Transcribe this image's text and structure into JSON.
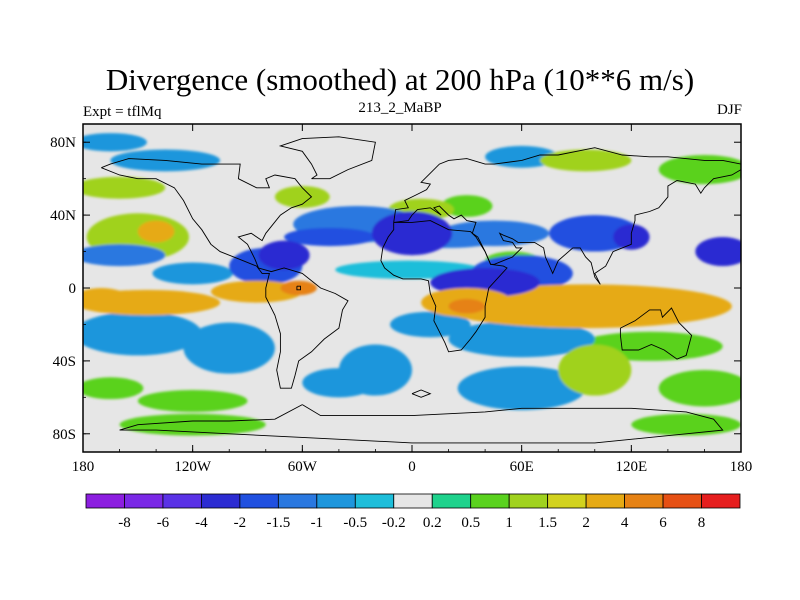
{
  "title": "Divergence (smoothed) at 200 hPa (10**6 m/s)",
  "left_label": "Expt = tflMq",
  "center_label": "213_2_MaBP",
  "right_label": "DJF",
  "chart_data": {
    "type": "heatmap",
    "xlim": [
      -180,
      180
    ],
    "ylim": [
      -90,
      90
    ],
    "x_ticks": [
      {
        "value": -180,
        "label": "180"
      },
      {
        "value": -120,
        "label": "120W"
      },
      {
        "value": -60,
        "label": "60W"
      },
      {
        "value": 0,
        "label": "0"
      },
      {
        "value": 60,
        "label": "60E"
      },
      {
        "value": 120,
        "label": "120E"
      },
      {
        "value": 180,
        "label": "180"
      }
    ],
    "y_ticks": [
      {
        "value": 80,
        "label": "80N"
      },
      {
        "value": 40,
        "label": "40N"
      },
      {
        "value": 0,
        "label": "0"
      },
      {
        "value": -40,
        "label": "40S"
      },
      {
        "value": -80,
        "label": "80S"
      }
    ],
    "colorbar": {
      "colors": [
        "#8c1ee0",
        "#7a28e6",
        "#5a32e6",
        "#2c2cd2",
        "#2050e0",
        "#2a78e0",
        "#1e96dc",
        "#1ebeda",
        "#e6e6e6",
        "#1ed28c",
        "#5ad21e",
        "#a0d21e",
        "#d2d21e",
        "#e6aa14",
        "#e68214",
        "#e65014",
        "#e61e1e"
      ],
      "labels": [
        "-8",
        "-6",
        "-4",
        "-2",
        "-1.5",
        "-1",
        "-0.5",
        "-0.2",
        "0.2",
        "0.5",
        "1",
        "1.5",
        "2",
        "4",
        "6",
        "8"
      ]
    },
    "blobs": [
      {
        "lon": -150,
        "lat": 28,
        "rx": 28,
        "ry": 13,
        "value": 1.2
      },
      {
        "lon": -140,
        "lat": 31,
        "rx": 10,
        "ry": 6,
        "value": 3.0
      },
      {
        "lon": -160,
        "lat": 18,
        "rx": 25,
        "ry": 6,
        "value": -1.2
      },
      {
        "lon": -120,
        "lat": 8,
        "rx": 22,
        "ry": 6,
        "value": -0.9
      },
      {
        "lon": -80,
        "lat": 12,
        "rx": 20,
        "ry": 10,
        "value": -1.6
      },
      {
        "lon": -70,
        "lat": 18,
        "rx": 14,
        "ry": 8,
        "value": -2.6
      },
      {
        "lon": -145,
        "lat": -8,
        "rx": 40,
        "ry": 7,
        "value": 2.2
      },
      {
        "lon": -170,
        "lat": -6,
        "rx": 15,
        "ry": 6,
        "value": 3.2
      },
      {
        "lon": -85,
        "lat": -2,
        "rx": 25,
        "ry": 6,
        "value": 2.0
      },
      {
        "lon": -62,
        "lat": 0,
        "rx": 10,
        "ry": 4,
        "value": 4.5
      },
      {
        "lon": -150,
        "lat": -25,
        "rx": 35,
        "ry": 12,
        "value": -0.8
      },
      {
        "lon": -100,
        "lat": -33,
        "rx": 25,
        "ry": 14,
        "value": -1.0
      },
      {
        "lon": -165,
        "lat": -55,
        "rx": 18,
        "ry": 6,
        "value": 0.9
      },
      {
        "lon": -120,
        "lat": -62,
        "rx": 30,
        "ry": 6,
        "value": 0.7
      },
      {
        "lon": -30,
        "lat": 35,
        "rx": 35,
        "ry": 10,
        "value": -1.3
      },
      {
        "lon": 0,
        "lat": 30,
        "rx": 22,
        "ry": 12,
        "value": -2.6
      },
      {
        "lon": -45,
        "lat": 28,
        "rx": 25,
        "ry": 5,
        "value": -1.7
      },
      {
        "lon": 20,
        "lat": 28,
        "rx": 30,
        "ry": 6,
        "value": -1.2
      },
      {
        "lon": 45,
        "lat": 30,
        "rx": 30,
        "ry": 7,
        "value": -1.2
      },
      {
        "lon": 100,
        "lat": 30,
        "rx": 25,
        "ry": 10,
        "value": -1.6
      },
      {
        "lon": 120,
        "lat": 28,
        "rx": 10,
        "ry": 7,
        "value": -2.8
      },
      {
        "lon": 170,
        "lat": 20,
        "rx": 15,
        "ry": 8,
        "value": -2.4
      },
      {
        "lon": 40,
        "lat": 3,
        "rx": 30,
        "ry": 8,
        "value": -2.6
      },
      {
        "lon": 60,
        "lat": 8,
        "rx": 28,
        "ry": 10,
        "value": -1.6
      },
      {
        "lon": 95,
        "lat": -10,
        "rx": 80,
        "ry": 12,
        "value": 2.5
      },
      {
        "lon": 30,
        "lat": -8,
        "rx": 25,
        "ry": 8,
        "value": 3.0
      },
      {
        "lon": 30,
        "lat": -10,
        "rx": 10,
        "ry": 4,
        "value": 5.0
      },
      {
        "lon": 10,
        "lat": -20,
        "rx": 22,
        "ry": 7,
        "value": -1.0
      },
      {
        "lon": 60,
        "lat": -28,
        "rx": 40,
        "ry": 10,
        "value": -1.0
      },
      {
        "lon": 130,
        "lat": -32,
        "rx": 40,
        "ry": 8,
        "value": 0.8
      },
      {
        "lon": 60,
        "lat": -55,
        "rx": 35,
        "ry": 12,
        "value": -0.8
      },
      {
        "lon": 100,
        "lat": -45,
        "rx": 20,
        "ry": 14,
        "value": 1.0
      },
      {
        "lon": -20,
        "lat": -45,
        "rx": 20,
        "ry": 14,
        "value": -0.8
      },
      {
        "lon": -40,
        "lat": -52,
        "rx": 20,
        "ry": 8,
        "value": -1.0
      },
      {
        "lon": -160,
        "lat": 55,
        "rx": 25,
        "ry": 6,
        "value": 1.0
      },
      {
        "lon": -60,
        "lat": 50,
        "rx": 15,
        "ry": 6,
        "value": 1.0
      },
      {
        "lon": -135,
        "lat": 70,
        "rx": 30,
        "ry": 6,
        "value": -0.8
      },
      {
        "lon": -165,
        "lat": 80,
        "rx": 20,
        "ry": 5,
        "value": -0.8
      },
      {
        "lon": 60,
        "lat": 72,
        "rx": 20,
        "ry": 6,
        "value": -0.8
      },
      {
        "lon": 95,
        "lat": 70,
        "rx": 25,
        "ry": 6,
        "value": 1.0
      },
      {
        "lon": 160,
        "lat": 65,
        "rx": 25,
        "ry": 8,
        "value": 0.9
      },
      {
        "lon": 5,
        "lat": 43,
        "rx": 18,
        "ry": 6,
        "value": 1.0
      },
      {
        "lon": 30,
        "lat": 45,
        "rx": 14,
        "ry": 6,
        "value": 0.9
      },
      {
        "lon": 55,
        "lat": 15,
        "rx": 15,
        "ry": 5,
        "value": 0.6
      },
      {
        "lon": -2,
        "lat": 10,
        "rx": 40,
        "ry": 5,
        "value": -0.4
      },
      {
        "lon": -120,
        "lat": -75,
        "rx": 40,
        "ry": 6,
        "value": 0.6
      },
      {
        "lon": 150,
        "lat": -75,
        "rx": 30,
        "ry": 6,
        "value": 0.6
      },
      {
        "lon": 160,
        "lat": -55,
        "rx": 25,
        "ry": 10,
        "value": 0.9
      }
    ],
    "coastlines": [
      [
        [
          -170,
          66
        ],
        [
          -160,
          62
        ],
        [
          -150,
          60
        ],
        [
          -140,
          60
        ],
        [
          -130,
          55
        ],
        [
          -125,
          48
        ],
        [
          -120,
          38
        ],
        [
          -115,
          32
        ],
        [
          -110,
          24
        ],
        [
          -105,
          20
        ],
        [
          -95,
          16
        ],
        [
          -85,
          12
        ],
        [
          -82,
          8
        ],
        [
          -78,
          8
        ],
        [
          -80,
          0
        ],
        [
          -80,
          -5
        ],
        [
          -75,
          -15
        ],
        [
          -72,
          -25
        ],
        [
          -72,
          -35
        ],
        [
          -74,
          -45
        ],
        [
          -72,
          -55
        ],
        [
          -66,
          -55
        ],
        [
          -64,
          -48
        ],
        [
          -62,
          -40
        ],
        [
          -55,
          -35
        ],
        [
          -48,
          -28
        ],
        [
          -40,
          -22
        ],
        [
          -38,
          -12
        ],
        [
          -35,
          -7
        ],
        [
          -42,
          -3
        ],
        [
          -50,
          0
        ],
        [
          -60,
          8
        ],
        [
          -70,
          11
        ],
        [
          -77,
          9
        ],
        [
          -84,
          11
        ],
        [
          -86,
          16
        ],
        [
          -88,
          20
        ],
        [
          -90,
          24
        ],
        [
          -95,
          28
        ],
        [
          -88,
          30
        ],
        [
          -82,
          26
        ],
        [
          -80,
          30
        ],
        [
          -76,
          35
        ],
        [
          -72,
          40
        ],
        [
          -66,
          44
        ],
        [
          -60,
          46
        ],
        [
          -55,
          50
        ],
        [
          -60,
          55
        ],
        [
          -64,
          60
        ],
        [
          -75,
          62
        ],
        [
          -80,
          60
        ],
        [
          -78,
          55
        ],
        [
          -85,
          55
        ],
        [
          -95,
          60
        ],
        [
          -94,
          68
        ],
        [
          -115,
          68
        ],
        [
          -135,
          70
        ],
        [
          -155,
          71
        ],
        [
          -165,
          68
        ],
        [
          -170,
          66
        ]
      ],
      [
        [
          -55,
          60
        ],
        [
          -45,
          60
        ],
        [
          -35,
          65
        ],
        [
          -22,
          70
        ],
        [
          -20,
          80
        ],
        [
          -40,
          83
        ],
        [
          -60,
          82
        ],
        [
          -72,
          78
        ],
        [
          -60,
          75
        ],
        [
          -55,
          68
        ],
        [
          -52,
          62
        ],
        [
          -55,
          60
        ]
      ],
      [
        [
          -10,
          36
        ],
        [
          -6,
          36
        ],
        [
          0,
          36
        ],
        [
          10,
          37
        ],
        [
          20,
          32
        ],
        [
          32,
          31
        ],
        [
          35,
          28
        ],
        [
          40,
          20
        ],
        [
          43,
          13
        ],
        [
          50,
          12
        ],
        [
          52,
          11
        ],
        [
          42,
          0
        ],
        [
          40,
          -10
        ],
        [
          40,
          -16
        ],
        [
          35,
          -24
        ],
        [
          32,
          -28
        ],
        [
          27,
          -34
        ],
        [
          20,
          -35
        ],
        [
          18,
          -30
        ],
        [
          12,
          -18
        ],
        [
          13,
          -10
        ],
        [
          10,
          -3
        ],
        [
          9,
          4
        ],
        [
          5,
          5
        ],
        [
          -5,
          5
        ],
        [
          -10,
          7
        ],
        [
          -15,
          11
        ],
        [
          -17,
          15
        ],
        [
          -16,
          22
        ],
        [
          -13,
          28
        ],
        [
          -10,
          32
        ],
        [
          -10,
          36
        ]
      ],
      [
        [
          -10,
          36
        ],
        [
          -9,
          43
        ],
        [
          -2,
          44
        ],
        [
          -4,
          48
        ],
        [
          2,
          51
        ],
        [
          8,
          54
        ],
        [
          10,
          57
        ],
        [
          5,
          58
        ],
        [
          10,
          63
        ],
        [
          15,
          68
        ],
        [
          20,
          70
        ],
        [
          30,
          71
        ],
        [
          40,
          68
        ],
        [
          45,
          68
        ],
        [
          60,
          70
        ],
        [
          70,
          73
        ],
        [
          80,
          73
        ],
        [
          100,
          77
        ],
        [
          115,
          73
        ],
        [
          130,
          72
        ],
        [
          140,
          72
        ],
        [
          160,
          70
        ],
        [
          170,
          70
        ],
        [
          180,
          68
        ],
        [
          180,
          65
        ],
        [
          175,
          62
        ],
        [
          165,
          60
        ],
        [
          160,
          55
        ],
        [
          158,
          52
        ],
        [
          155,
          57
        ],
        [
          145,
          59
        ],
        [
          140,
          56
        ],
        [
          140,
          50
        ],
        [
          135,
          44
        ],
        [
          130,
          42
        ],
        [
          122,
          40
        ],
        [
          122,
          37
        ],
        [
          120,
          30
        ],
        [
          120,
          24
        ],
        [
          110,
          20
        ],
        [
          106,
          12
        ],
        [
          100,
          8
        ],
        [
          103,
          2
        ],
        [
          100,
          6
        ],
        [
          98,
          14
        ],
        [
          95,
          17
        ],
        [
          92,
          22
        ],
        [
          88,
          22
        ],
        [
          80,
          15
        ],
        [
          77,
          8
        ],
        [
          73,
          17
        ],
        [
          72,
          22
        ],
        [
          67,
          25
        ],
        [
          58,
          25
        ],
        [
          55,
          27
        ],
        [
          50,
          29
        ],
        [
          48,
          30
        ],
        [
          50,
          26
        ],
        [
          55,
          25
        ],
        [
          57,
          22
        ],
        [
          60,
          22
        ],
        [
          55,
          17
        ],
        [
          45,
          13
        ],
        [
          43,
          13
        ],
        [
          40,
          20
        ],
        [
          36,
          28
        ],
        [
          33,
          30
        ],
        [
          35,
          36
        ],
        [
          30,
          37
        ],
        [
          27,
          40
        ],
        [
          23,
          38
        ],
        [
          20,
          40
        ],
        [
          15,
          45
        ],
        [
          12,
          44
        ],
        [
          16,
          40
        ],
        [
          10,
          44
        ],
        [
          3,
          43
        ],
        [
          0,
          40
        ],
        [
          -2,
          37
        ],
        [
          -10,
          36
        ]
      ],
      [
        [
          114,
          -22
        ],
        [
          122,
          -18
        ],
        [
          130,
          -12
        ],
        [
          136,
          -12
        ],
        [
          137,
          -16
        ],
        [
          142,
          -11
        ],
        [
          146,
          -19
        ],
        [
          153,
          -26
        ],
        [
          150,
          -37
        ],
        [
          145,
          -39
        ],
        [
          138,
          -34
        ],
        [
          131,
          -31
        ],
        [
          124,
          -34
        ],
        [
          115,
          -34
        ],
        [
          114,
          -26
        ],
        [
          114,
          -22
        ]
      ],
      [
        [
          -60,
          -64
        ],
        [
          -50,
          -70
        ],
        [
          0,
          -70
        ],
        [
          40,
          -68
        ],
        [
          60,
          -66
        ],
        [
          90,
          -66
        ],
        [
          120,
          -66
        ],
        [
          150,
          -68
        ],
        [
          165,
          -72
        ],
        [
          170,
          -78
        ],
        [
          150,
          -80
        ],
        [
          100,
          -85
        ],
        [
          0,
          -85
        ],
        [
          -60,
          -82
        ],
        [
          -100,
          -80
        ],
        [
          -140,
          -78
        ],
        [
          -160,
          -78
        ],
        [
          -150,
          -75
        ],
        [
          -120,
          -73
        ],
        [
          -100,
          -73
        ],
        [
          -75,
          -72
        ],
        [
          -60,
          -64
        ]
      ],
      [
        [
          0,
          -58
        ],
        [
          5,
          -60
        ],
        [
          10,
          -58
        ],
        [
          5,
          -56
        ],
        [
          0,
          -58
        ]
      ],
      [
        [
          -63,
          1
        ],
        [
          -61,
          1
        ],
        [
          -61,
          -1
        ],
        [
          -63,
          -1
        ],
        [
          -63,
          1
        ]
      ]
    ]
  }
}
